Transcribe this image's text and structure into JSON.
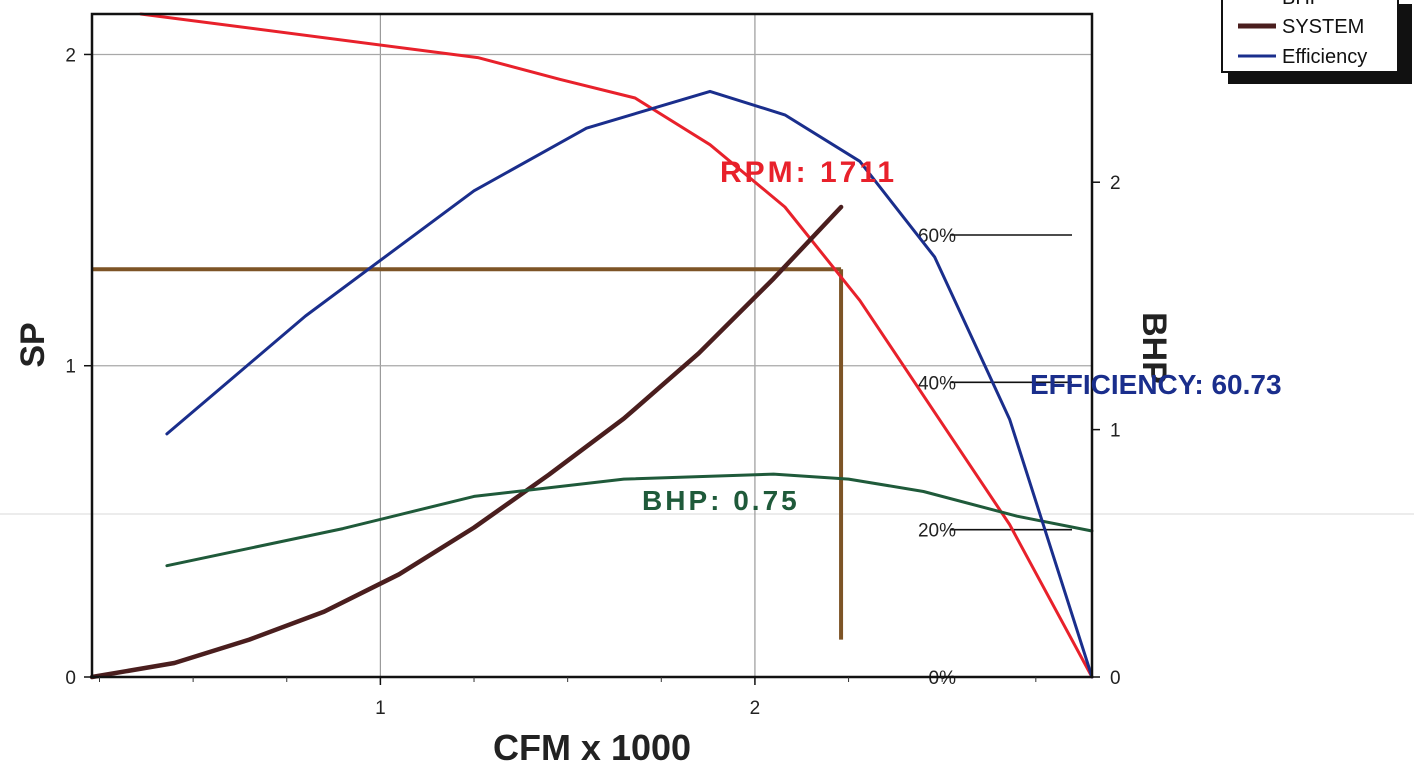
{
  "chart_data": {
    "type": "line",
    "xlabel": "CFM x 1000",
    "ylabel": "SP",
    "y2label": "BHP",
    "xlim": [
      0.23,
      2.9
    ],
    "ylim": [
      0,
      2.13
    ],
    "y2lim": [
      0,
      2.68
    ],
    "y3lim": [
      0,
      0.9
    ],
    "x_ticks": [
      "1",
      "2"
    ],
    "y_ticks": [
      "0",
      "1",
      "2"
    ],
    "y2_ticks": [
      "0",
      "1",
      "2"
    ],
    "pct_ticks": [
      {
        "value": 0,
        "label": "0%"
      },
      {
        "value": 0.2,
        "label": "20%"
      },
      {
        "value": 0.4,
        "label": "40%"
      },
      {
        "value": 0.6,
        "label": "60%"
      }
    ],
    "grid": true,
    "legend": {
      "position": "top-right",
      "items": [
        {
          "name": "BHP",
          "color": "#1f5a3a"
        },
        {
          "name": "SYSTEM",
          "color": "#4a1e1e"
        },
        {
          "name": "Efficiency",
          "color": "#1a2e8c"
        }
      ]
    },
    "series": [
      {
        "name": "RPM",
        "axis": "left",
        "color": "#e8212b",
        "x": [
          0.36,
          1.26,
          1.48,
          1.68,
          1.88,
          2.08,
          2.28,
          2.48,
          2.68,
          2.9
        ],
        "y": [
          2.13,
          1.99,
          1.92,
          1.86,
          1.71,
          1.51,
          1.21,
          0.85,
          0.49,
          0.0
        ]
      },
      {
        "name": "SYSTEM",
        "axis": "left",
        "color": "#4a1e1e",
        "x": [
          0.23,
          0.45,
          0.65,
          0.85,
          1.05,
          1.25,
          1.45,
          1.65,
          1.85,
          2.05,
          2.23
        ],
        "y": [
          0.0,
          0.045,
          0.12,
          0.21,
          0.33,
          0.48,
          0.65,
          0.83,
          1.04,
          1.28,
          1.51
        ]
      },
      {
        "name": "BHP",
        "axis": "right",
        "color": "#1f5a3a",
        "x": [
          0.43,
          0.9,
          1.25,
          1.65,
          2.05,
          2.25,
          2.45,
          2.7,
          2.9
        ],
        "y": [
          0.45,
          0.6,
          0.73,
          0.8,
          0.82,
          0.8,
          0.75,
          0.65,
          0.59
        ]
      },
      {
        "name": "Efficiency",
        "axis": "pct",
        "color": "#1a2e8c",
        "x": [
          0.43,
          0.8,
          1.25,
          1.55,
          1.88,
          2.08,
          2.28,
          2.48,
          2.68,
          2.9
        ],
        "y": [
          0.33,
          0.49,
          0.66,
          0.745,
          0.795,
          0.763,
          0.7,
          0.57,
          0.35,
          0.0
        ]
      }
    ],
    "operating_point": {
      "x": 2.23,
      "y": 1.31,
      "drop_to": 0.12,
      "color": "#7d5426"
    },
    "annotations": [
      {
        "text": "RPM: 1711",
        "color": "#e8212b"
      },
      {
        "text": "BHP: 0.75",
        "color": "#1f5a3a"
      },
      {
        "text": "EFFICIENCY: 60.73",
        "color": "#1a2e8c"
      }
    ]
  }
}
